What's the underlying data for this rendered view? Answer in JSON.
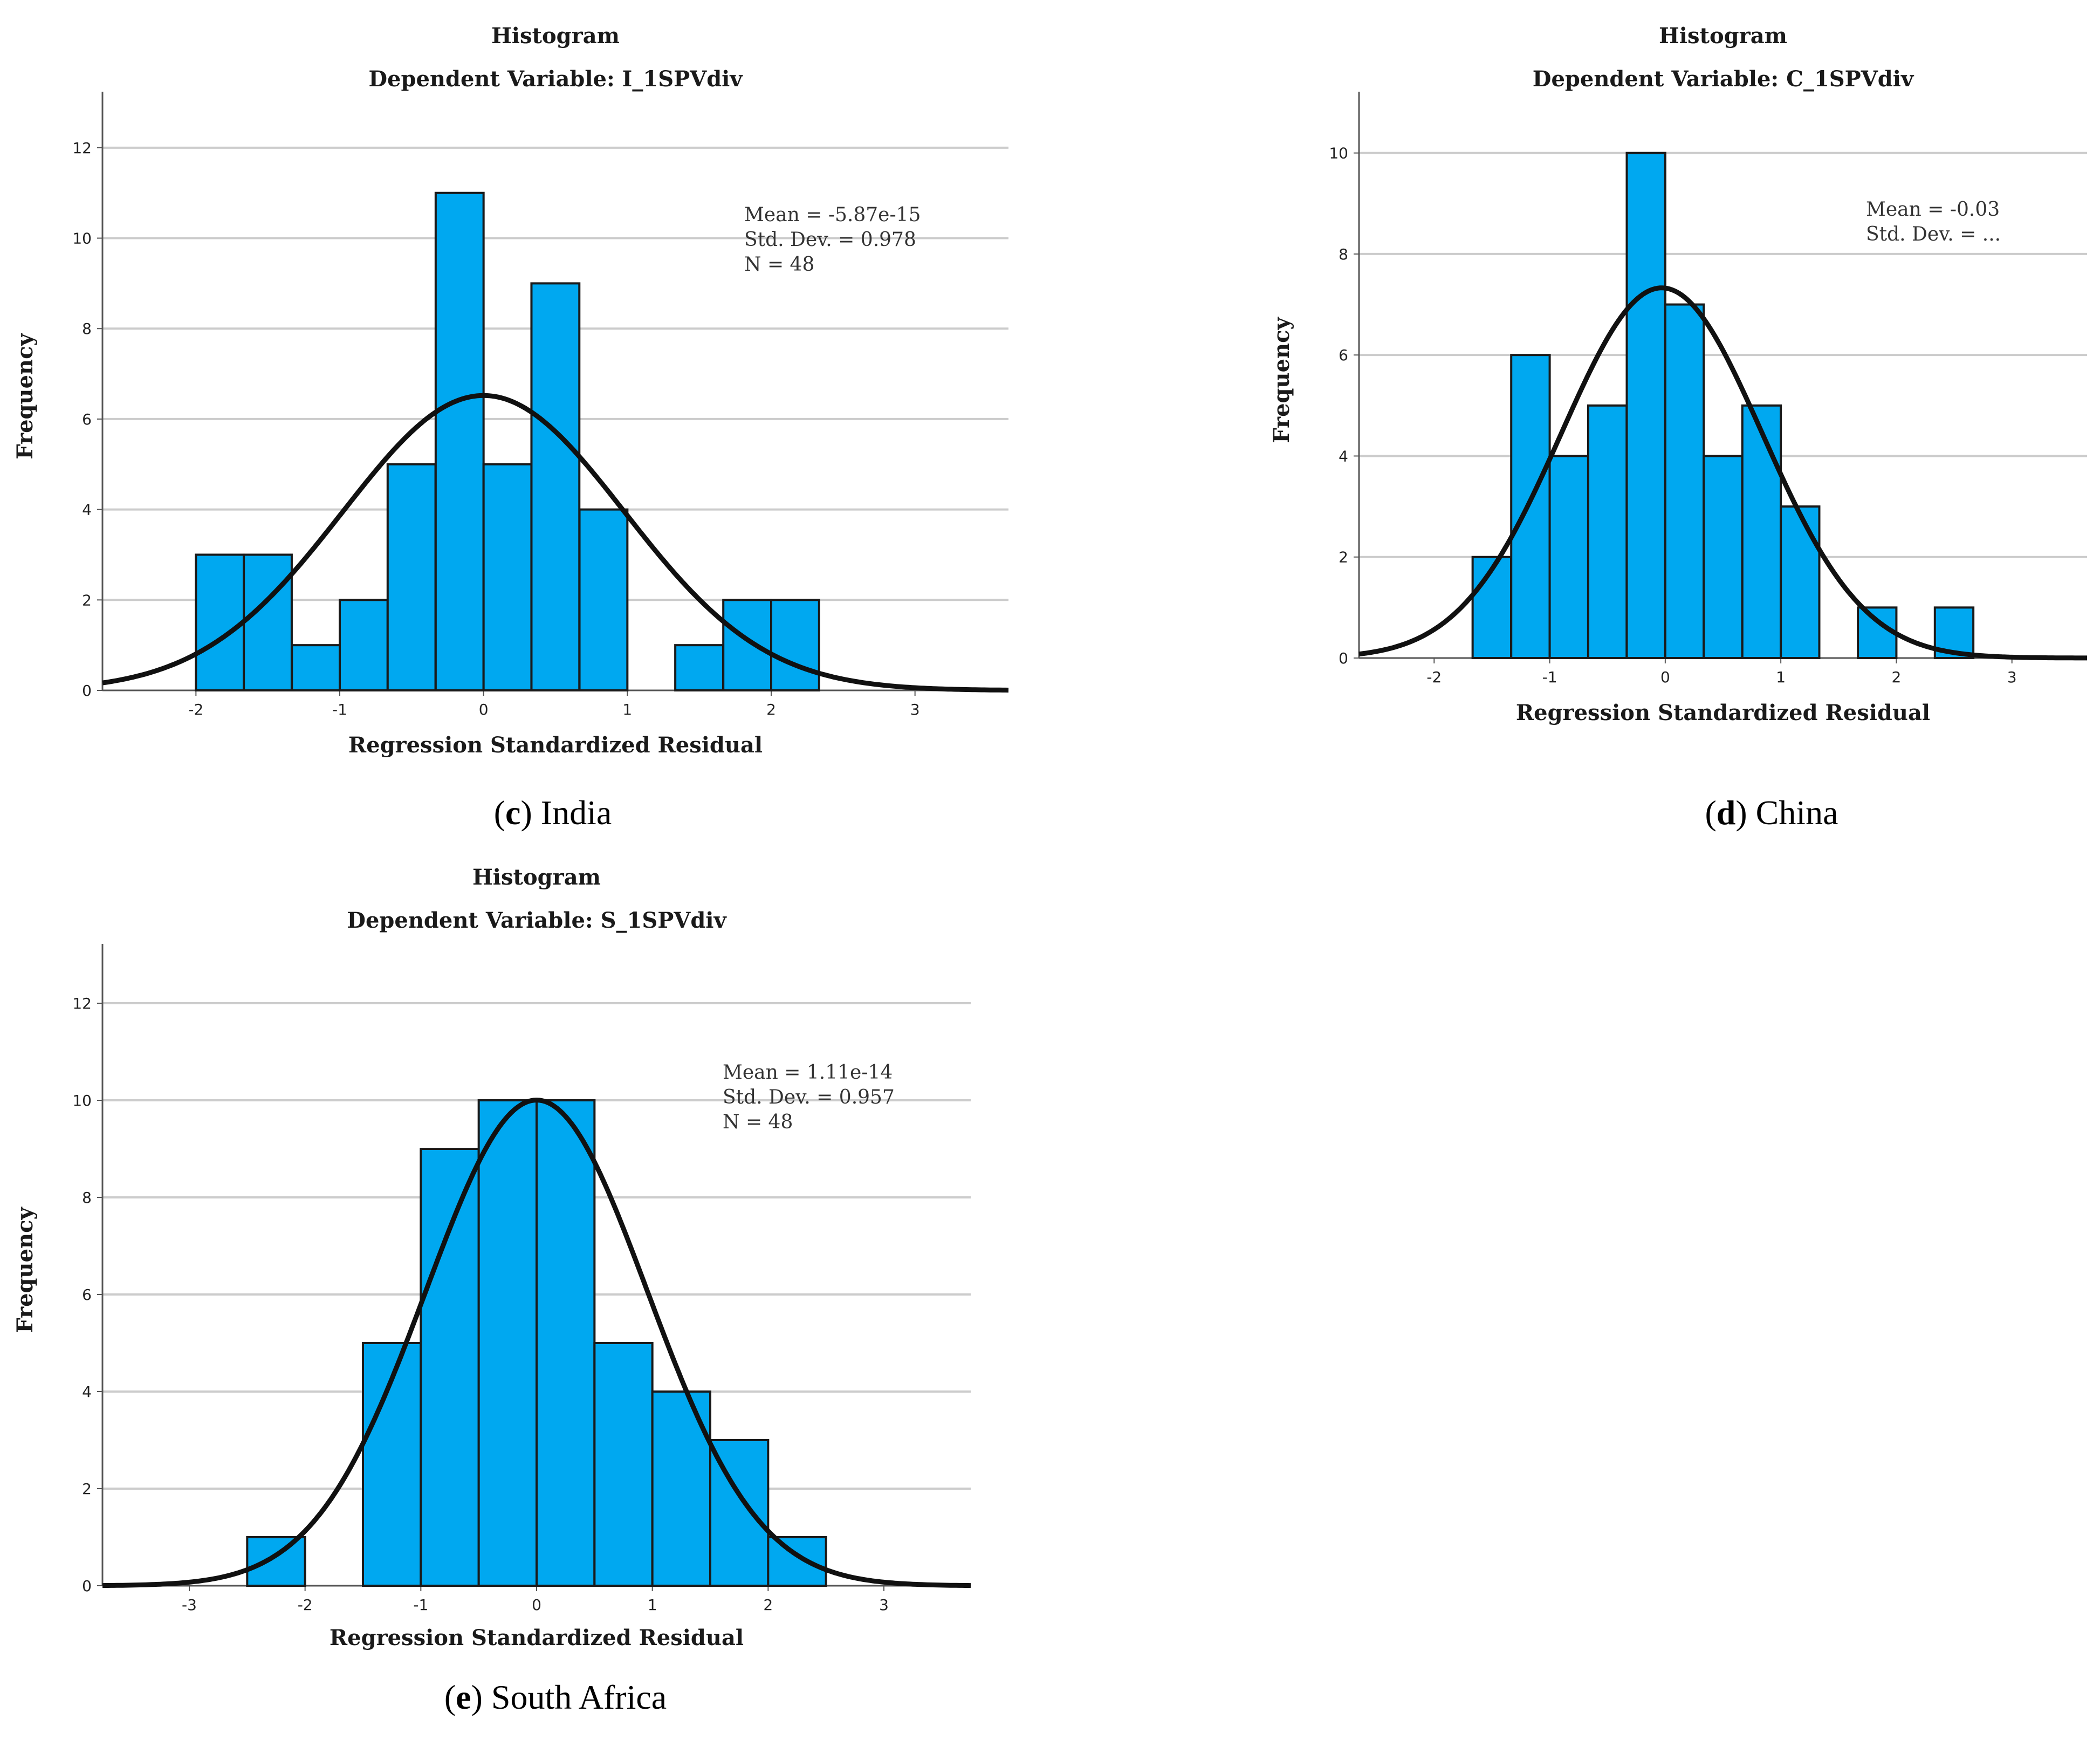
{
  "chart_data": [
    {
      "id": "india",
      "type": "bar",
      "title": "Histogram",
      "subtitle": "Dependent Variable: I_1SPVdiv",
      "xlabel": "Regression Standardized Residual",
      "ylabel": "Frequency",
      "xlim": [
        -2.65,
        3.65
      ],
      "ylim": [
        0,
        13
      ],
      "xticks": [
        -2,
        -1,
        0,
        1,
        2,
        3
      ],
      "yticks": [
        0,
        2,
        4,
        6,
        8,
        10,
        12
      ],
      "bin_width": 0.333,
      "bins": [
        {
          "start": -2.0,
          "count": 3
        },
        {
          "start": -1.667,
          "count": 3
        },
        {
          "start": -1.333,
          "count": 1
        },
        {
          "start": -1.0,
          "count": 2
        },
        {
          "start": -0.667,
          "count": 5
        },
        {
          "start": -0.333,
          "count": 11
        },
        {
          "start": 0.0,
          "count": 5
        },
        {
          "start": 0.333,
          "count": 9
        },
        {
          "start": 0.667,
          "count": 4
        },
        {
          "start": 1.0,
          "count": 0
        },
        {
          "start": 1.333,
          "count": 1
        },
        {
          "start": 1.667,
          "count": 2
        },
        {
          "start": 2.0,
          "count": 2
        }
      ],
      "curve": {
        "mean": 0,
        "sd": 0.978,
        "n": 48
      },
      "stats": [
        "Mean = -5.87e-15",
        "Std. Dev. = 0.978",
        "N = 48"
      ],
      "caption_letter": "c",
      "caption_text": " India"
    },
    {
      "id": "china",
      "type": "bar",
      "title": "Histogram",
      "subtitle": "Dependent Variable: C_1SPVdiv",
      "xlabel": "Regression Standardized Residual",
      "ylabel": "Frequency",
      "xlim": [
        -2.65,
        3.65
      ],
      "ylim": [
        0,
        11
      ],
      "xticks": [
        -2,
        -1,
        0,
        1,
        2,
        3
      ],
      "yticks": [
        0,
        2,
        4,
        6,
        8,
        10
      ],
      "bin_width": 0.333,
      "bins": [
        {
          "start": -1.667,
          "count": 2
        },
        {
          "start": -1.333,
          "count": 6
        },
        {
          "start": -1.0,
          "count": 4
        },
        {
          "start": -0.667,
          "count": 5
        },
        {
          "start": -0.333,
          "count": 10
        },
        {
          "start": 0.0,
          "count": 7
        },
        {
          "start": 0.333,
          "count": 4
        },
        {
          "start": 0.667,
          "count": 5
        },
        {
          "start": 1.0,
          "count": 3
        },
        {
          "start": 1.333,
          "count": 0
        },
        {
          "start": 1.667,
          "count": 1
        },
        {
          "start": 2.0,
          "count": 0
        },
        {
          "start": 2.333,
          "count": 1
        }
      ],
      "curve": {
        "mean": -0.03,
        "sd": 0.87,
        "n": 48
      },
      "stats": [
        "Mean = -0.03",
        "Std. Dev. = ..."
      ],
      "caption_letter": "d",
      "caption_text": " China"
    },
    {
      "id": "south_africa",
      "type": "bar",
      "title": "Histogram",
      "subtitle": "Dependent Variable: S_1SPVdiv",
      "xlabel": "Regression Standardized Residual",
      "ylabel": "Frequency",
      "xlim": [
        -3.75,
        3.75
      ],
      "ylim": [
        0,
        13
      ],
      "xticks": [
        -3,
        -2,
        -1,
        0,
        1,
        2,
        3
      ],
      "yticks": [
        0,
        2,
        4,
        6,
        8,
        10,
        12
      ],
      "bin_width": 0.5,
      "bins": [
        {
          "start": -2.5,
          "count": 1
        },
        {
          "start": -2.0,
          "count": 0
        },
        {
          "start": -1.5,
          "count": 5
        },
        {
          "start": -1.0,
          "count": 9
        },
        {
          "start": -0.5,
          "count": 10
        },
        {
          "start": 0.0,
          "count": 10
        },
        {
          "start": 0.5,
          "count": 5
        },
        {
          "start": 1.0,
          "count": 4
        },
        {
          "start": 1.5,
          "count": 3
        },
        {
          "start": 2.0,
          "count": 1
        }
      ],
      "curve": {
        "mean": 0,
        "sd": 0.957,
        "n": 48
      },
      "stats": [
        "Mean = 1.11e-14",
        "Std. Dev. = 0.957",
        "N = 48"
      ],
      "caption_letter": "e",
      "caption_text": " South Africa"
    }
  ],
  "colors": {
    "bar_fill": "#00a8f0",
    "bar_stroke": "#1a1a1a",
    "curve": "#111111",
    "grid": "#cccccc"
  }
}
